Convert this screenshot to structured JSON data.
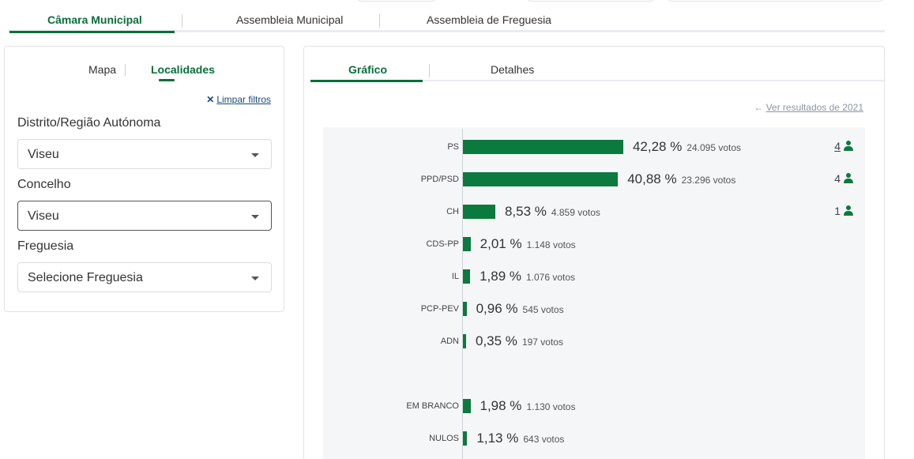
{
  "top_tabs": {
    "items": [
      {
        "label": "Câmara Municipal",
        "active": true
      },
      {
        "label": "Assembleia Municipal",
        "active": false
      },
      {
        "label": "Assembleia de Freguesia",
        "active": false
      }
    ]
  },
  "filters": {
    "tabs": [
      {
        "label": "Mapa",
        "active": false
      },
      {
        "label": "Localidades",
        "active": true
      }
    ],
    "clear_label": "Limpar filtros",
    "district_label": "Distrito/Região Autónoma",
    "district_value": "Viseu",
    "municipality_label": "Concelho",
    "municipality_value": "Viseu",
    "parish_label": "Freguesia",
    "parish_value": "Selecione Freguesia"
  },
  "results": {
    "tabs": [
      {
        "label": "Gráfico",
        "active": true
      },
      {
        "label": "Detalhes",
        "active": false
      }
    ],
    "prev_results_label": "Ver resultados de 2021"
  },
  "chart_data": {
    "type": "bar",
    "orientation": "horizontal",
    "categories": [
      "PS",
      "PPD/PSD",
      "CH",
      "CDS-PP",
      "IL",
      "PCP-PEV",
      "ADN",
      "EM BRANCO",
      "NULOS"
    ],
    "values": [
      42.28,
      40.88,
      8.53,
      2.01,
      1.89,
      0.96,
      0.35,
      1.98,
      1.13
    ],
    "percent_labels": [
      "42,28 %",
      "40,88 %",
      "8,53 %",
      "2,01 %",
      "1,89 %",
      "0,96 %",
      "0,35 %",
      "1,98 %",
      "1,13 %"
    ],
    "votes": [
      "24.095 votos",
      "23.296 votos",
      "4.859 votos",
      "1.148 votos",
      "1.076 votos",
      "545 votos",
      "197 votos",
      "1.130 votos",
      "643 votos"
    ],
    "seats": [
      "4",
      "4",
      "1",
      "",
      "",
      "",
      "",
      "",
      ""
    ],
    "bar_color": "#0a7a3e"
  }
}
